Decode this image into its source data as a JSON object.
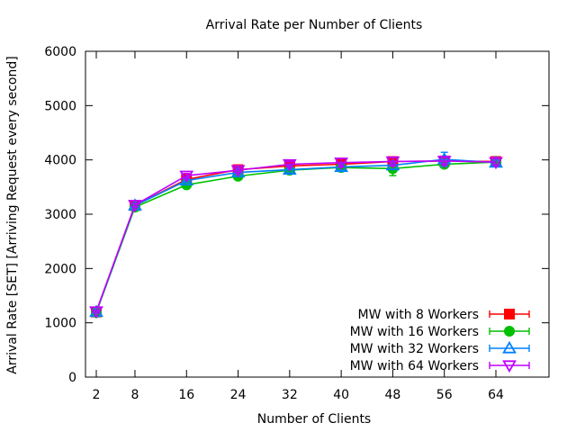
{
  "chart_data": {
    "type": "line",
    "title": "Arrival Rate per Number of Clients",
    "xlabel": "Number of Clients",
    "ylabel": "Arrival Rate [SET] [Arriving Request every second]",
    "x": [
      2,
      8,
      16,
      24,
      32,
      40,
      48,
      56,
      64
    ],
    "x_tick_labels": [
      "2",
      "8",
      "16",
      "24",
      "32",
      "40",
      "48",
      "56",
      "64"
    ],
    "y_tick_values": [
      0,
      1000,
      2000,
      3000,
      4000,
      5000,
      6000
    ],
    "y_tick_labels": [
      "0",
      "1000",
      "2000",
      "3000",
      "4000",
      "5000",
      "6000"
    ],
    "ylim": [
      0,
      6000
    ],
    "grid": false,
    "legend_position": "bottom-right",
    "series": [
      {
        "name": "MW with 8 Workers",
        "color": "#ff0000",
        "marker": "square-filled",
        "values": [
          1200,
          3160,
          3640,
          3820,
          3890,
          3920,
          3970,
          3980,
          3970
        ],
        "errors": [
          20,
          30,
          40,
          40,
          50,
          60,
          70,
          60,
          50
        ]
      },
      {
        "name": "MW with 16 Workers",
        "color": "#00c000",
        "marker": "circle-filled",
        "values": [
          1190,
          3130,
          3540,
          3700,
          3810,
          3860,
          3840,
          3920,
          3960
        ],
        "errors": [
          20,
          30,
          40,
          40,
          50,
          50,
          130,
          60,
          50
        ]
      },
      {
        "name": "MW with 32 Workers",
        "color": "#0080ff",
        "marker": "triangle-up-open",
        "values": [
          1200,
          3160,
          3620,
          3770,
          3820,
          3870,
          3900,
          4010,
          3950
        ],
        "errors": [
          20,
          30,
          40,
          40,
          60,
          60,
          70,
          130,
          70
        ]
      },
      {
        "name": "MW with 64 Workers",
        "color": "#c000ff",
        "marker": "triangle-down-open",
        "values": [
          1210,
          3170,
          3710,
          3810,
          3920,
          3950,
          3970,
          3980,
          3960
        ],
        "errors": [
          20,
          30,
          40,
          40,
          50,
          80,
          80,
          70,
          60
        ]
      }
    ]
  }
}
